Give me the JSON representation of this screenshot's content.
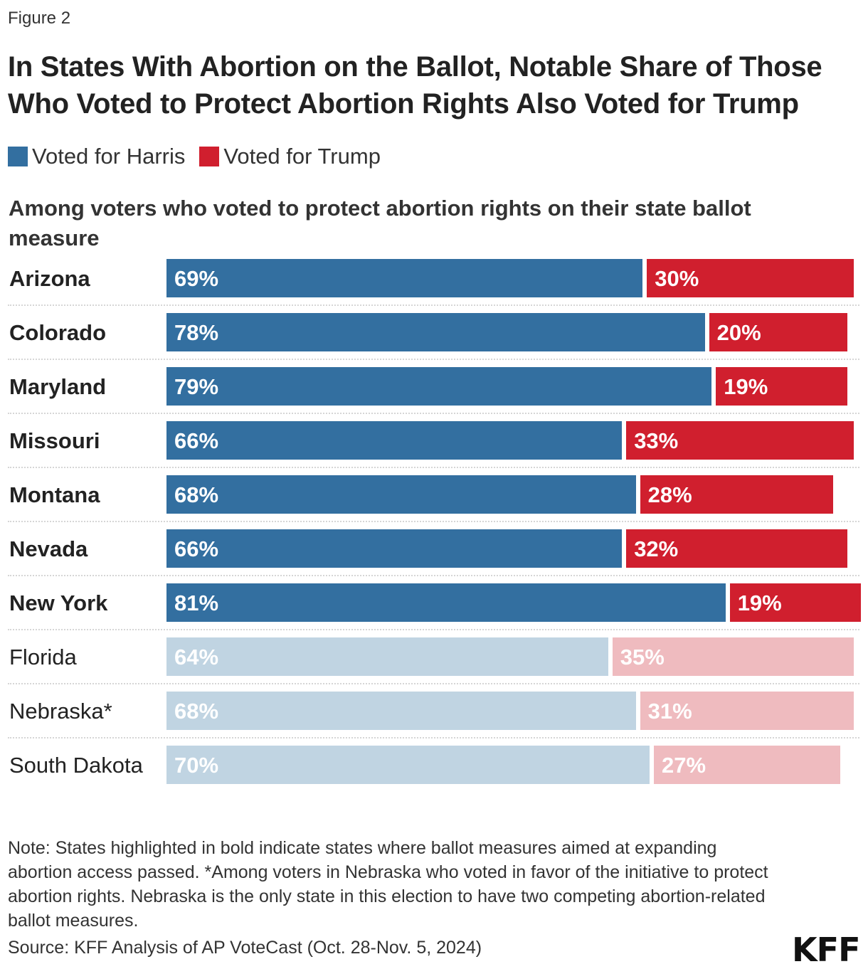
{
  "figure_label": "Figure 2",
  "colors": {
    "harris": "#336fa0",
    "trump": "#d01f2e",
    "harris_light": "#c0d4e2",
    "trump_light": "#efbbbf"
  },
  "chart_data": {
    "type": "bar",
    "orientation": "horizontal-stacked",
    "title": "In States With Abortion on the Ballot, Notable Share of Those Who Voted to Protect Abortion Rights Also Voted for Trump",
    "subtitle": "Among voters who voted to protect abortion rights on their state ballot measure",
    "legend": {
      "placement": "top-left",
      "entries": [
        "Voted for Harris",
        "Voted for Trump"
      ]
    },
    "categories": [
      "Arizona",
      "Colorado",
      "Maryland",
      "Missouri",
      "Montana",
      "Nevada",
      "New York",
      "Florida",
      "Nebraska*",
      "South Dakota"
    ],
    "bold": [
      true,
      true,
      true,
      true,
      true,
      true,
      true,
      false,
      false,
      false
    ],
    "series": [
      {
        "name": "Voted for Harris",
        "values": [
          69,
          78,
          79,
          66,
          68,
          66,
          81,
          64,
          68,
          70
        ],
        "labels": [
          "69%",
          "78%",
          "79%",
          "66%",
          "68%",
          "66%",
          "81%",
          "64%",
          "68%",
          "70%"
        ]
      },
      {
        "name": "Voted for Trump",
        "values": [
          30,
          20,
          19,
          33,
          28,
          32,
          19,
          35,
          31,
          27
        ],
        "labels": [
          "30%",
          "20%",
          "19%",
          "33%",
          "28%",
          "32%",
          "19%",
          "35%",
          "31%",
          "27%"
        ]
      }
    ],
    "xlim": [
      0,
      100
    ]
  },
  "note": "Note: States highlighted in bold indicate states where ballot measures aimed at expanding abortion access passed. *Among voters in Nebraska who voted in favor of the initiative to protect abortion rights. Nebraska is the only state in this election to have two competing abortion-related ballot measures.",
  "source": "Source: KFF Analysis of AP VoteCast (Oct. 28-Nov. 5, 2024)",
  "logo": "KFF"
}
